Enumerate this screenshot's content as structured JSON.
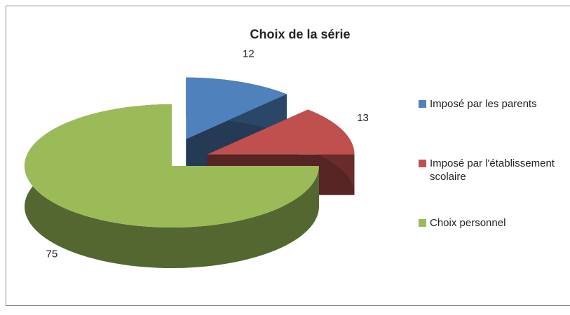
{
  "chart_data": {
    "type": "pie",
    "title": "Choix de la série",
    "categories": [
      "Imposé par les parents",
      "Imposé par l'établissement scolaire",
      "Choix personnel"
    ],
    "values": [
      12,
      13,
      75
    ],
    "colors": [
      "#4f81bd",
      "#c0504d",
      "#9bbb59"
    ],
    "legend": "right",
    "exploded": [
      true,
      true,
      false
    ]
  }
}
